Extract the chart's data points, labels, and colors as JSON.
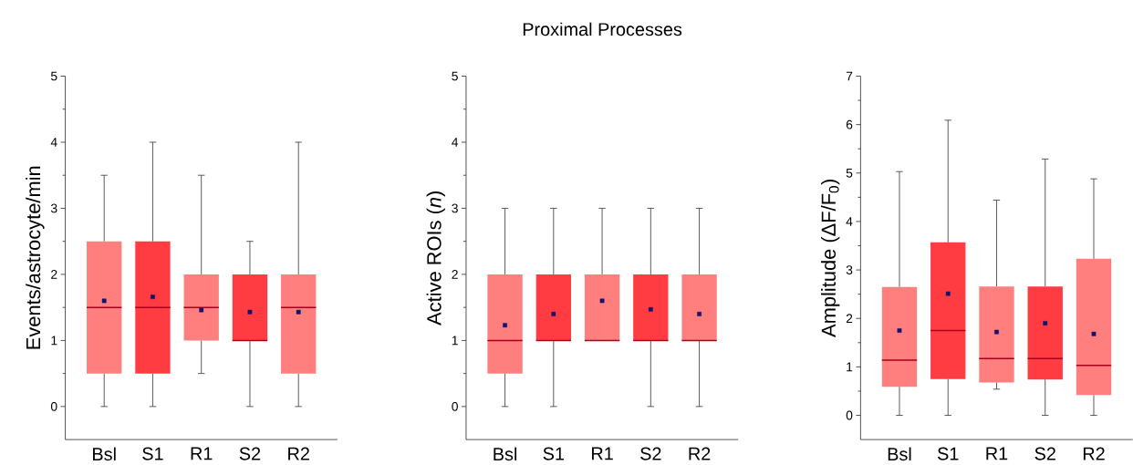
{
  "chart_data": [
    {
      "type": "box",
      "ylabel": "Events/astrocyte/min",
      "categories": [
        "Bsl",
        "S1",
        "R1",
        "S2",
        "R2"
      ],
      "colors": [
        "#ff7f7f",
        "#ff3c42",
        "#ff7f7f",
        "#ff3c42",
        "#ff7f7f"
      ],
      "ylim": [
        -0.5,
        5
      ],
      "yticks": [
        0,
        1,
        2,
        3,
        4,
        5
      ],
      "boxes": [
        {
          "low": 0,
          "q1": 0.5,
          "median": 1.5,
          "q3": 2.5,
          "high": 3.5,
          "mean": 1.6
        },
        {
          "low": 0,
          "q1": 0.5,
          "median": 1.5,
          "q3": 2.5,
          "high": 4,
          "mean": 1.66
        },
        {
          "low": 0.5,
          "q1": 1,
          "median": 1.5,
          "q3": 2,
          "high": 3.5,
          "mean": 1.46
        },
        {
          "low": 0,
          "q1": 1,
          "median": 1,
          "q3": 2,
          "high": 2.5,
          "mean": 1.43
        },
        {
          "low": 0,
          "q1": 0.5,
          "median": 1.5,
          "q3": 2,
          "high": 4,
          "mean": 1.43
        }
      ]
    },
    {
      "type": "box",
      "title": "Proximal Processes",
      "ylabel": "Active ROIs (*n*)",
      "categories": [
        "Bsl",
        "S1",
        "R1",
        "S2",
        "R2"
      ],
      "colors": [
        "#ff7f7f",
        "#ff3c42",
        "#ff7f7f",
        "#ff3c42",
        "#ff7f7f"
      ],
      "ylim": [
        -0.5,
        5
      ],
      "yticks": [
        0,
        1,
        2,
        3,
        4,
        5
      ],
      "boxes": [
        {
          "low": 0,
          "q1": 0.5,
          "median": 1,
          "q3": 2,
          "high": 3,
          "mean": 1.23
        },
        {
          "low": 0,
          "q1": 1,
          "median": 1,
          "q3": 2,
          "high": 3,
          "mean": 1.4
        },
        {
          "low": 1,
          "q1": 1,
          "median": 1,
          "q3": 2,
          "high": 3,
          "mean": 1.6
        },
        {
          "low": 0,
          "q1": 1,
          "median": 1,
          "q3": 2,
          "high": 3,
          "mean": 1.47
        },
        {
          "low": 0,
          "q1": 1,
          "median": 1,
          "q3": 2,
          "high": 3,
          "mean": 1.4
        }
      ]
    },
    {
      "type": "box",
      "ylabel": "Amplitude (ΔF/F$_{0}$)",
      "categories": [
        "Bsl",
        "S1",
        "R1",
        "S2",
        "R2"
      ],
      "colors": [
        "#ff7f7f",
        "#ff3c42",
        "#ff7f7f",
        "#ff3c42",
        "#ff7f7f"
      ],
      "ylim": [
        -0.5,
        7
      ],
      "yticks": [
        0,
        1,
        2,
        3,
        4,
        5,
        6,
        7
      ],
      "boxes": [
        {
          "low": 0,
          "q1": 0.59,
          "median": 1.14,
          "q3": 2.65,
          "high": 5.03,
          "mean": 1.75
        },
        {
          "low": 0,
          "q1": 0.75,
          "median": 1.75,
          "q3": 3.57,
          "high": 6.09,
          "mean": 2.51
        },
        {
          "low": 0.54,
          "q1": 0.68,
          "median": 1.17,
          "q3": 2.66,
          "high": 4.44,
          "mean": 1.72
        },
        {
          "low": 0,
          "q1": 0.74,
          "median": 1.17,
          "q3": 2.66,
          "high": 5.29,
          "mean": 1.9
        },
        {
          "low": 0,
          "q1": 0.42,
          "median": 1.03,
          "q3": 3.23,
          "high": 4.88,
          "mean": 1.68
        }
      ]
    }
  ]
}
